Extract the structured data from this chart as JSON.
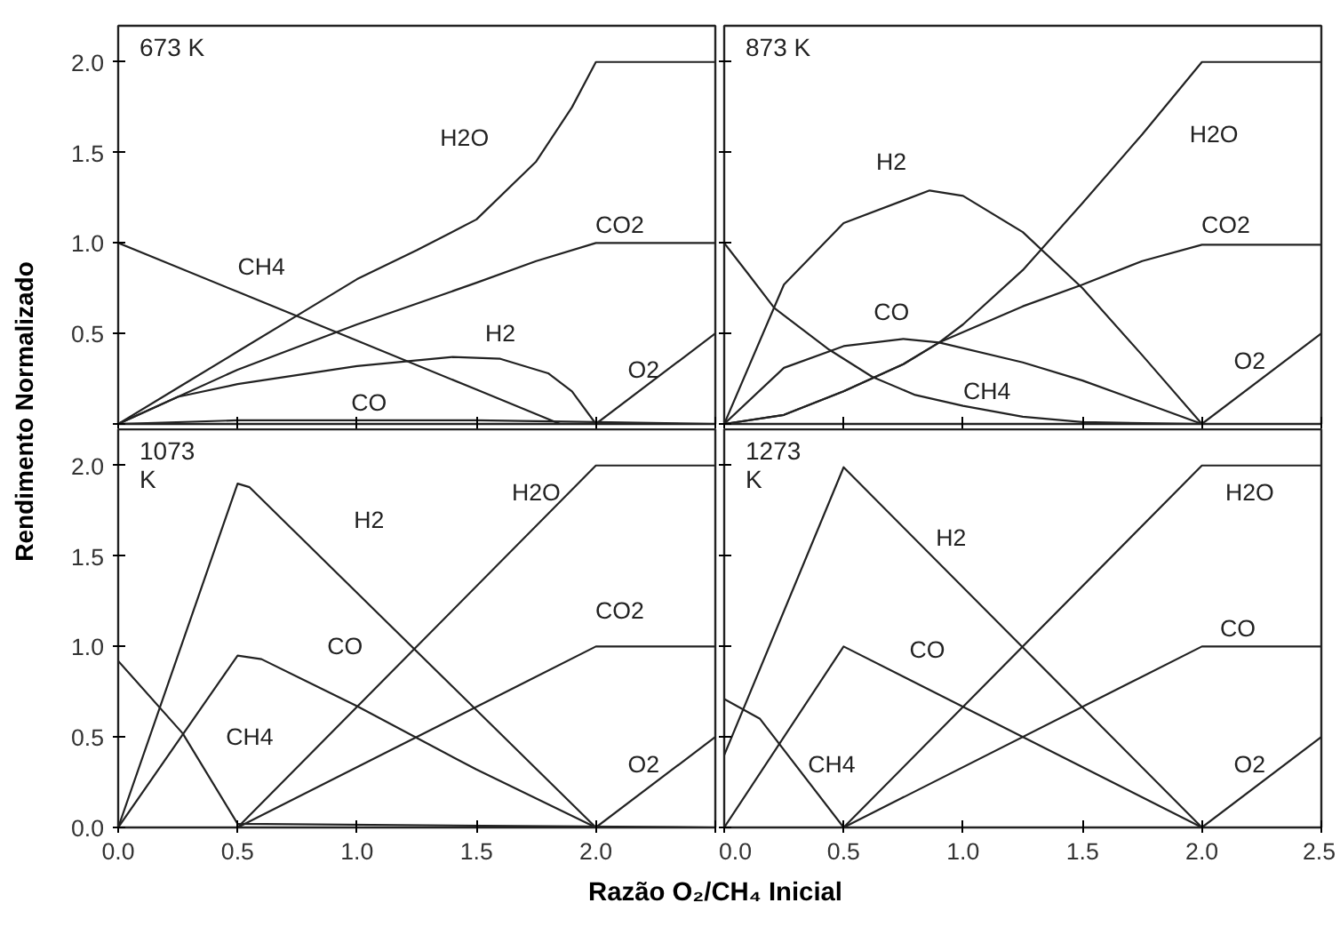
{
  "chart_data": [
    {
      "type": "line",
      "title": "673 K",
      "xlim": [
        0,
        2.5
      ],
      "ylim": [
        0,
        2.2
      ],
      "tick_labels": "y",
      "xticks": [
        {
          "value": 0,
          "label": null
        },
        {
          "value": 0.5,
          "label": null
        },
        {
          "value": 1,
          "label": null
        },
        {
          "value": 1.5,
          "label": null
        },
        {
          "value": 2,
          "label": null
        },
        {
          "value": 2.5,
          "label": null
        }
      ],
      "yticks": [
        {
          "value": 0,
          "label": null
        },
        {
          "value": 0.5,
          "label": "0.5"
        },
        {
          "value": 1,
          "label": "1.0"
        },
        {
          "value": 1.5,
          "label": "1.5"
        },
        {
          "value": 2,
          "label": "2.0"
        }
      ],
      "series": [
        {
          "name": "H2O",
          "color": "#222222",
          "x": [
            0,
            0.25,
            0.5,
            0.75,
            1.0,
            1.25,
            1.5,
            1.75,
            1.9,
            2.0,
            2.5
          ],
          "values": [
            0,
            0.2,
            0.4,
            0.6,
            0.8,
            0.96,
            1.13,
            1.45,
            1.75,
            2.0,
            2.0
          ]
        },
        {
          "name": "CO2",
          "color": "#222222",
          "x": [
            0,
            0.5,
            0.86,
            1.0,
            1.5,
            1.75,
            2.0,
            2.5
          ],
          "values": [
            0,
            0.3,
            0.48,
            0.55,
            0.78,
            0.9,
            1.0,
            1.0
          ]
        },
        {
          "name": "CH4",
          "color": "#222222",
          "x": [
            0,
            0.5,
            1.0,
            1.5,
            1.85,
            2.0,
            2.5
          ],
          "values": [
            1.0,
            0.73,
            0.46,
            0.19,
            0,
            0,
            0
          ]
        },
        {
          "name": "H2",
          "color": "#222222",
          "x": [
            0,
            0.25,
            0.5,
            1.0,
            1.4,
            1.6,
            1.8,
            1.9,
            2.0,
            2.5
          ],
          "values": [
            0,
            0.15,
            0.22,
            0.32,
            0.37,
            0.36,
            0.28,
            0.18,
            0,
            0
          ]
        },
        {
          "name": "CO",
          "color": "#222222",
          "x": [
            0,
            0.5,
            1.0,
            1.5,
            2.0,
            2.5
          ],
          "values": [
            0,
            0.02,
            0.02,
            0.02,
            0.01,
            0
          ]
        },
        {
          "name": "O2",
          "color": "#222222",
          "x": [
            0,
            2.0,
            2.5
          ],
          "values": [
            0,
            0,
            0.5
          ]
        }
      ]
    },
    {
      "type": "line",
      "title": "873 K",
      "xlim": [
        0,
        2.5
      ],
      "ylim": [
        0,
        2.2
      ],
      "tick_labels": false,
      "xticks": [
        {
          "value": 0,
          "label": null
        },
        {
          "value": 0.5,
          "label": null
        },
        {
          "value": 1,
          "label": null
        },
        {
          "value": 1.5,
          "label": null
        },
        {
          "value": 2,
          "label": null
        },
        {
          "value": 2.5,
          "label": null
        }
      ],
      "yticks": [
        {
          "value": 0,
          "label": null
        },
        {
          "value": 0.5,
          "label": null
        },
        {
          "value": 1,
          "label": null
        },
        {
          "value": 1.5,
          "label": null
        },
        {
          "value": 2,
          "label": null
        }
      ],
      "series": [
        {
          "name": "H2O",
          "color": "#222222",
          "x": [
            0,
            0.25,
            0.5,
            0.75,
            0.9,
            1.0,
            1.25,
            1.5,
            1.75,
            2.0,
            2.5
          ],
          "values": [
            0,
            0.05,
            0.18,
            0.33,
            0.45,
            0.55,
            0.85,
            1.22,
            1.6,
            2.0,
            2.0
          ]
        },
        {
          "name": "CO2",
          "color": "#222222",
          "x": [
            0,
            0.25,
            0.5,
            0.75,
            0.9,
            1.25,
            1.5,
            1.75,
            2.0,
            2.5
          ],
          "values": [
            0,
            0.05,
            0.18,
            0.33,
            0.45,
            0.65,
            0.77,
            0.9,
            0.99,
            0.99
          ]
        },
        {
          "name": "CH4",
          "color": "#222222",
          "x": [
            0,
            0.1,
            0.21,
            0.44,
            0.62,
            0.8,
            1.0,
            1.25,
            1.5,
            2.0,
            2.5
          ],
          "values": [
            1.0,
            0.83,
            0.64,
            0.41,
            0.26,
            0.16,
            0.1,
            0.04,
            0.01,
            0,
            0
          ]
        },
        {
          "name": "H2",
          "color": "#222222",
          "x": [
            0,
            0.25,
            0.5,
            0.86,
            1.0,
            1.25,
            1.5,
            1.75,
            2.0,
            2.5
          ],
          "values": [
            0,
            0.77,
            1.11,
            1.29,
            1.26,
            1.06,
            0.75,
            0.38,
            0,
            0
          ]
        },
        {
          "name": "CO",
          "color": "#222222",
          "x": [
            0,
            0.25,
            0.5,
            0.75,
            0.9,
            1.25,
            1.5,
            1.75,
            2.0,
            2.5
          ],
          "values": [
            0,
            0.31,
            0.43,
            0.47,
            0.45,
            0.34,
            0.24,
            0.12,
            0,
            0
          ]
        },
        {
          "name": "O2",
          "color": "#222222",
          "x": [
            0,
            2.0,
            2.5
          ],
          "values": [
            0,
            0,
            0.5
          ]
        }
      ]
    },
    {
      "type": "line",
      "title": "1073 K",
      "xlim": [
        0,
        2.5
      ],
      "ylim": [
        0,
        2.2
      ],
      "xlabel": "Razão O₂/CH₄ Inicial",
      "ylabel": "Rendimento Normalizado",
      "xticks": [
        {
          "value": 0,
          "label": "0.0"
        },
        {
          "value": 0.5,
          "label": "0.5"
        },
        {
          "value": 1,
          "label": "1.0"
        },
        {
          "value": 1.5,
          "label": "1.5"
        },
        {
          "value": 2,
          "label": "2.0"
        },
        {
          "value": 2.5,
          "label": null
        }
      ],
      "yticks": [
        {
          "value": 0,
          "label": "0.0"
        },
        {
          "value": 0.5,
          "label": "0.5"
        },
        {
          "value": 1,
          "label": "1.0"
        },
        {
          "value": 1.5,
          "label": "1.5"
        },
        {
          "value": 2,
          "label": "2.0"
        }
      ],
      "series": [
        {
          "name": "H2O",
          "color": "#222222",
          "x": [
            0,
            0.5,
            2.0,
            2.5
          ],
          "values": [
            0,
            0,
            2.0,
            2.0
          ]
        },
        {
          "name": "CO2",
          "color": "#222222",
          "x": [
            0,
            0.5,
            2.0,
            2.5
          ],
          "values": [
            0,
            0,
            1.0,
            1.0
          ]
        },
        {
          "name": "CH4",
          "color": "#222222",
          "x": [
            0,
            0.27,
            0.5,
            2.5
          ],
          "values": [
            0.92,
            0.52,
            0.02,
            0
          ]
        },
        {
          "name": "H2",
          "color": "#222222",
          "x": [
            0,
            0.5,
            0.55,
            2.0,
            2.5
          ],
          "values": [
            0,
            1.9,
            1.88,
            0,
            0
          ]
        },
        {
          "name": "CO",
          "color": "#222222",
          "x": [
            0,
            0.5,
            0.6,
            1.0,
            1.5,
            2.0,
            2.5
          ],
          "values": [
            0,
            0.95,
            0.93,
            0.67,
            0.32,
            0,
            0
          ]
        },
        {
          "name": "O2",
          "color": "#222222",
          "x": [
            0,
            2.0,
            2.5
          ],
          "values": [
            0,
            0,
            0.5
          ]
        }
      ]
    },
    {
      "type": "line",
      "title": "1273 K",
      "xlim": [
        0,
        2.5
      ],
      "ylim": [
        0,
        2.2
      ],
      "tick_labels": "x",
      "xticks": [
        {
          "value": 0,
          "label": "0.0"
        },
        {
          "value": 0.5,
          "label": "0.5"
        },
        {
          "value": 1,
          "label": "1.0"
        },
        {
          "value": 1.5,
          "label": "1.5"
        },
        {
          "value": 2,
          "label": "2.0"
        },
        {
          "value": 2.5,
          "label": "2.5"
        }
      ],
      "yticks": [
        {
          "value": 0,
          "label": null
        },
        {
          "value": 0.5,
          "label": null
        },
        {
          "value": 1,
          "label": null
        },
        {
          "value": 1.5,
          "label": null
        },
        {
          "value": 2,
          "label": null
        }
      ],
      "series": [
        {
          "name": "H2O",
          "color": "#222222",
          "x": [
            0,
            0.5,
            2.0,
            2.5
          ],
          "values": [
            0,
            0,
            2.0,
            2.0
          ]
        },
        {
          "name": "CO",
          "color": "#222222",
          "x": [
            0,
            0.5,
            2.0,
            2.5
          ],
          "values": [
            0,
            0,
            1.0,
            1.0
          ]
        },
        {
          "name": "CH4",
          "color": "#222222",
          "x": [
            0,
            0.15,
            0.5,
            2.5
          ],
          "values": [
            0.71,
            0.6,
            0,
            0
          ]
        },
        {
          "name": "H2",
          "color": "#222222",
          "x": [
            0,
            0.5,
            2.0,
            2.5
          ],
          "values": [
            0.4,
            1.99,
            0,
            0
          ]
        },
        {
          "name": "CO",
          "color": "#222222",
          "x": [
            0,
            0.5,
            2.0,
            2.5
          ],
          "values": [
            0,
            1.0,
            0,
            0
          ]
        },
        {
          "name": "O2",
          "color": "#222222",
          "x": [
            0,
            2.0,
            2.5
          ],
          "values": [
            0,
            0,
            0.5
          ]
        }
      ]
    }
  ]
}
